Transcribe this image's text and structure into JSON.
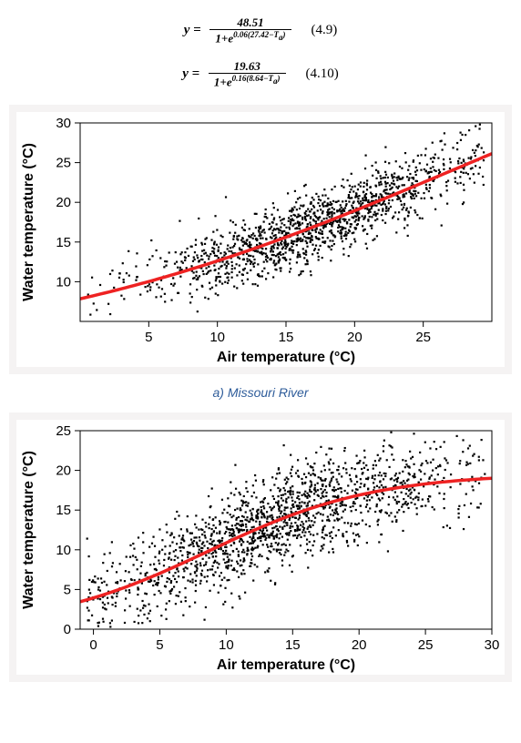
{
  "eq1": {
    "lhs": "y =",
    "num": "48.51",
    "den_prefix": "1+e",
    "den_exp": "0.06(27.42−T",
    "den_exp_sub": "a",
    "den_exp_tail": ")",
    "label": "(4.9)"
  },
  "eq2": {
    "lhs": "y =",
    "num": "19.63",
    "den_prefix": "1+e",
    "den_exp": "0.16(8.64−T",
    "den_exp_sub": "a",
    "den_exp_tail": ")",
    "label": "(4.10)"
  },
  "caption_a": "a) Missouri River",
  "chart_a": {
    "type": "scatter",
    "xlabel": "Air temperature (°C)",
    "ylabel": "Water temperature (°C)",
    "xlim": [
      0,
      30
    ],
    "ylim": [
      5,
      30
    ],
    "xticks": [
      5,
      10,
      15,
      20,
      25
    ],
    "yticks": [
      10,
      15,
      20,
      25,
      30
    ],
    "tick_fontsize": 15,
    "label_fontsize": 16,
    "background_color": "#ffffff",
    "panel_background": "#f5f3f3",
    "scatter_color": "#000000",
    "scatter_size": 2.2,
    "line_color": "#ee2222",
    "line_width": 3.5,
    "n_points": 1400,
    "curve": {
      "a": 48.51,
      "k": 0.06,
      "x0": 27.42
    },
    "spread": 2.2,
    "cluster_mean": 17,
    "cluster_sd": 6
  },
  "chart_b": {
    "type": "scatter",
    "xlabel": "Air temperature (°C)",
    "ylabel": "Water temperature (°C)",
    "xlim": [
      -1,
      30
    ],
    "ylim": [
      0,
      25
    ],
    "xticks": [
      0,
      5,
      10,
      15,
      20,
      25,
      30
    ],
    "yticks": [
      0,
      5,
      10,
      15,
      20,
      25
    ],
    "tick_fontsize": 15,
    "label_fontsize": 16,
    "background_color": "#ffffff",
    "panel_background": "#f5f3f3",
    "scatter_color": "#000000",
    "scatter_size": 2.2,
    "line_color": "#ee2222",
    "line_width": 3.5,
    "n_points": 1600,
    "curve": {
      "a": 19.63,
      "k": 0.16,
      "x0": 8.64
    },
    "spread": 3.0,
    "cluster_mean": 14,
    "cluster_sd": 7
  }
}
